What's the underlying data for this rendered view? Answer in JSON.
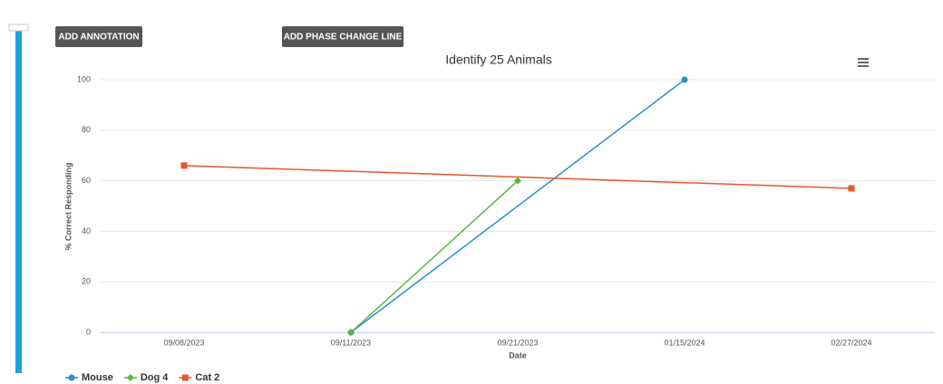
{
  "ui": {
    "buttons": [
      "ADD ANNOTATION",
      "ADD PHASE CHANGE LINE"
    ]
  },
  "chart_data": {
    "type": "line",
    "title": "Identify 25 Animals",
    "x_label": "Date",
    "y_label": "% Correct Responding",
    "categories": [
      "09/08/2023",
      "09/11/2023",
      "09/21/2023",
      "01/15/2024",
      "02/27/2024"
    ],
    "ylim": [
      0,
      100
    ],
    "yticks": [
      0,
      20,
      40,
      60,
      80,
      100
    ],
    "grid": true,
    "series": [
      {
        "name": "Mouse",
        "color": "#2a90c6",
        "marker": "circle",
        "x": [
          "09/11/2023",
          "01/15/2024"
        ],
        "values": [
          0,
          100
        ]
      },
      {
        "name": "Dog 4",
        "color": "#5db53b",
        "marker": "diamond",
        "x": [
          "09/11/2023",
          "09/21/2023"
        ],
        "values": [
          0,
          60
        ]
      },
      {
        "name": "Cat 2",
        "color": "#e8572b",
        "marker": "square",
        "x": [
          "09/08/2023",
          "02/27/2024"
        ],
        "values": [
          66,
          57
        ]
      }
    ]
  }
}
